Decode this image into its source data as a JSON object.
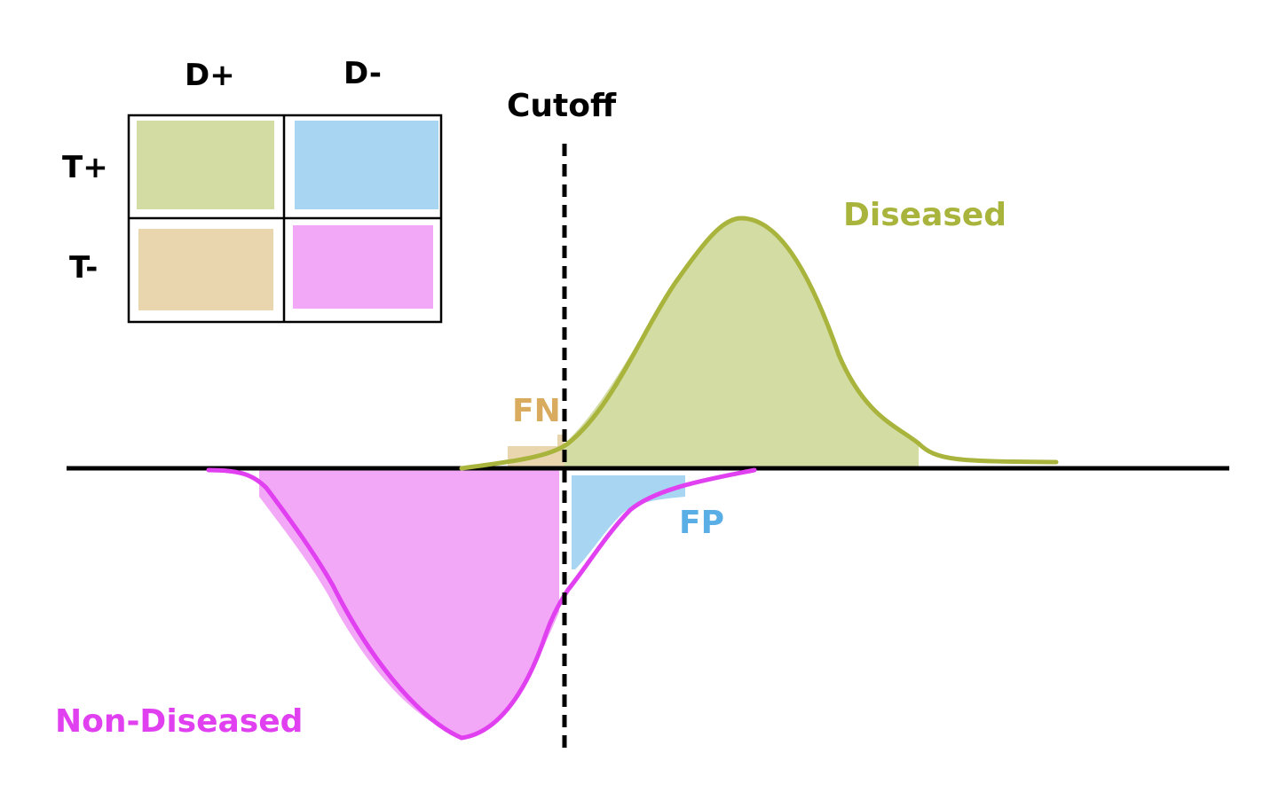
{
  "matrix": {
    "col_headers": [
      "D+",
      "D-"
    ],
    "row_headers": [
      "T+",
      "T-"
    ],
    "cells": [
      {
        "name": "tp-cell",
        "color": "#d3dca3"
      },
      {
        "name": "fp-cell",
        "color": "#a8d6f2"
      },
      {
        "name": "fn-cell",
        "color": "#ead6ae"
      },
      {
        "name": "tn-cell",
        "color": "#f3a8f7"
      }
    ]
  },
  "cutoff_label": "Cutoff",
  "diseased_label": "Diseased",
  "non_diseased_label": "Non-Diseased",
  "fn_label": "FN",
  "fp_label": "FP",
  "colors": {
    "diseased_line": "#a8b43c",
    "diseased_fill": "#d3dca3",
    "non_diseased_line": "#e040f0",
    "non_diseased_fill": "#f3a8f7",
    "fn": "#d9ab5e",
    "fp": "#5aaee6",
    "axis": "#000000"
  }
}
